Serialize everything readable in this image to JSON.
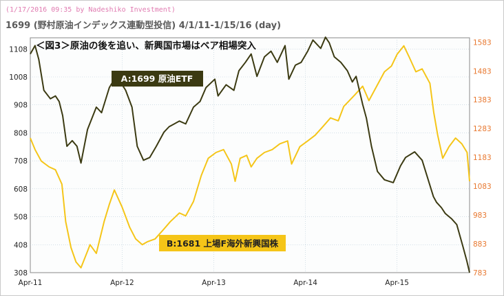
{
  "header": {
    "stamp": "(1/17/2016 09:35 by Nadeshiko Investment)",
    "title": "1699 (野村原油インデックス連動型投信) 4/1/11-1/15/16 (day)"
  },
  "chart_data": {
    "type": "line",
    "title": "＜図3＞原油の後を追い、新興国市場はベア相場突入",
    "x_tick_labels": [
      "Apr-11",
      "Apr-12",
      "Apr-13",
      "Apr-14",
      "Apr-15"
    ],
    "x_range": [
      "2011-04-01",
      "2016-01-15"
    ],
    "left_axis": {
      "ticks": [
        308,
        408,
        508,
        608,
        708,
        808,
        908,
        1008,
        1108
      ],
      "range": [
        308,
        1148
      ]
    },
    "right_axis": {
      "ticks": [
        783,
        883,
        983,
        1083,
        1183,
        1283,
        1383,
        1483,
        1583
      ],
      "range": [
        783,
        1598
      ]
    },
    "grid": true,
    "series": [
      {
        "name": "A:1699 原油ETF",
        "axis": "left",
        "color": "#3b3a12",
        "x": [
          "2011-04-01",
          "2011-04-20",
          "2011-05-05",
          "2011-05-25",
          "2011-06-20",
          "2011-07-10",
          "2011-07-25",
          "2011-08-08",
          "2011-08-25",
          "2011-09-15",
          "2011-10-04",
          "2011-10-20",
          "2011-11-15",
          "2011-12-20",
          "2012-01-10",
          "2012-02-10",
          "2012-03-01",
          "2012-03-25",
          "2012-04-15",
          "2012-05-10",
          "2012-05-31",
          "2012-06-25",
          "2012-07-20",
          "2012-08-15",
          "2012-09-14",
          "2012-10-05",
          "2012-11-15",
          "2012-12-10",
          "2013-01-10",
          "2013-02-05",
          "2013-03-01",
          "2013-04-05",
          "2013-04-18",
          "2013-05-20",
          "2013-06-20",
          "2013-07-10",
          "2013-08-05",
          "2013-08-28",
          "2013-09-20",
          "2013-10-20",
          "2013-11-15",
          "2013-12-10",
          "2014-01-10",
          "2014-01-25",
          "2014-02-20",
          "2014-03-15",
          "2014-04-10",
          "2014-05-01",
          "2014-06-01",
          "2014-06-20",
          "2014-07-05",
          "2014-07-25",
          "2014-08-20",
          "2014-09-15",
          "2014-10-05",
          "2014-10-20",
          "2014-11-15",
          "2014-11-30",
          "2014-12-20",
          "2015-01-13",
          "2015-02-10",
          "2015-03-17",
          "2015-04-15",
          "2015-05-05",
          "2015-06-10",
          "2015-07-10",
          "2015-08-24",
          "2015-09-05",
          "2015-09-25",
          "2015-10-10",
          "2015-11-05",
          "2015-11-25",
          "2015-12-20",
          "2016-01-04",
          "2016-01-15"
        ],
        "y": [
          1090,
          1120,
          1070,
          960,
          930,
          940,
          920,
          870,
          760,
          780,
          760,
          700,
          820,
          900,
          880,
          970,
          1000,
          990,
          960,
          900,
          760,
          710,
          720,
          760,
          810,
          830,
          850,
          840,
          900,
          920,
          970,
          1000,
          940,
          980,
          960,
          1030,
          1060,
          1090,
          1010,
          1080,
          1100,
          1060,
          1120,
          1000,
          1050,
          1060,
          1100,
          1140,
          1110,
          1150,
          1130,
          1080,
          1060,
          1030,
          990,
          1010,
          910,
          860,
          760,
          670,
          640,
          630,
          690,
          720,
          740,
          710,
          580,
          560,
          540,
          520,
          500,
          480,
          400,
          350,
          308
        ]
      },
      {
        "name": "B:1681 上場F海外新興国株",
        "axis": "right",
        "color": "#f5c518",
        "x": [
          "2011-04-01",
          "2011-04-20",
          "2011-05-15",
          "2011-06-15",
          "2011-07-10",
          "2011-08-05",
          "2011-08-20",
          "2011-09-10",
          "2011-09-30",
          "2011-10-20",
          "2011-11-25",
          "2011-12-20",
          "2012-01-20",
          "2012-02-10",
          "2012-03-01",
          "2012-04-01",
          "2012-05-01",
          "2012-05-25",
          "2012-06-20",
          "2012-07-10",
          "2012-08-10",
          "2012-09-10",
          "2012-10-10",
          "2012-11-15",
          "2012-12-10",
          "2013-01-10",
          "2013-02-10",
          "2013-03-10",
          "2013-04-10",
          "2013-05-10",
          "2013-06-10",
          "2013-06-25",
          "2013-07-15",
          "2013-08-10",
          "2013-08-28",
          "2013-09-20",
          "2013-10-20",
          "2013-11-20",
          "2013-12-20",
          "2014-01-20",
          "2014-02-05",
          "2014-03-10",
          "2014-04-10",
          "2014-05-10",
          "2014-06-10",
          "2014-07-10",
          "2014-08-10",
          "2014-09-01",
          "2014-10-15",
          "2014-11-15",
          "2014-12-10",
          "2015-01-10",
          "2015-02-10",
          "2015-03-10",
          "2015-04-01",
          "2015-04-28",
          "2015-05-20",
          "2015-06-15",
          "2015-07-10",
          "2015-08-10",
          "2015-08-25",
          "2015-09-10",
          "2015-09-30",
          "2015-10-25",
          "2015-11-20",
          "2015-12-15",
          "2016-01-05",
          "2016-01-15"
        ],
        "y": [
          1250,
          1210,
          1170,
          1150,
          1140,
          1090,
          960,
          870,
          820,
          800,
          880,
          850,
          960,
          1020,
          1070,
          1010,
          940,
          900,
          880,
          890,
          900,
          930,
          960,
          990,
          980,
          1030,
          1120,
          1180,
          1200,
          1210,
          1160,
          1100,
          1180,
          1190,
          1150,
          1180,
          1200,
          1210,
          1230,
          1240,
          1160,
          1220,
          1240,
          1260,
          1290,
          1320,
          1310,
          1360,
          1400,
          1430,
          1380,
          1430,
          1480,
          1500,
          1540,
          1570,
          1530,
          1480,
          1490,
          1440,
          1340,
          1260,
          1180,
          1220,
          1250,
          1230,
          1200,
          1100
        ]
      }
    ]
  }
}
